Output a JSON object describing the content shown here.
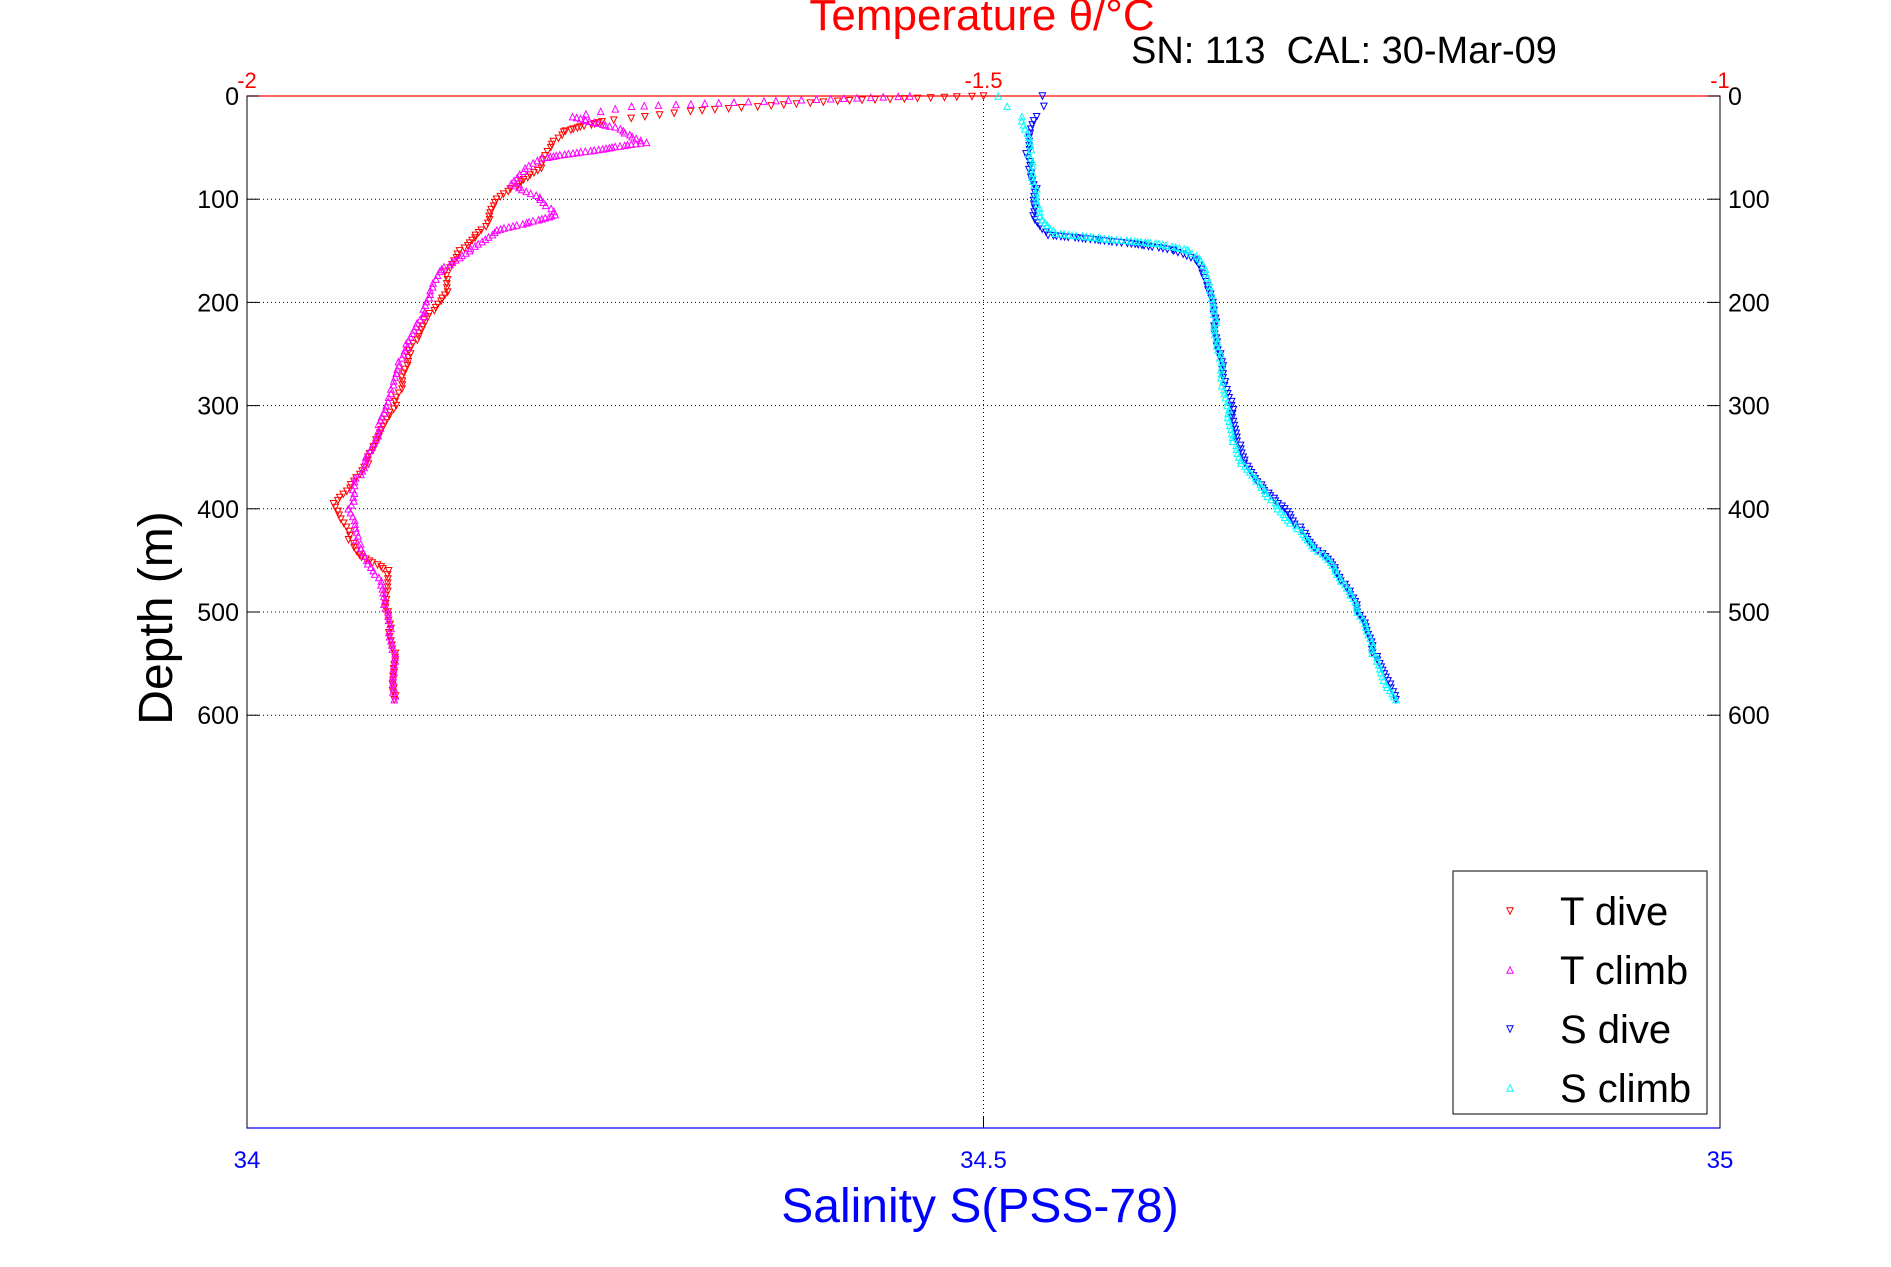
{
  "chart_data": {
    "type": "scatter",
    "title": "Temperature θ/°C",
    "subtitle": "SN: 113  CAL: 30-Mar-09",
    "xlabel": "Salinity S(PSS-78)",
    "ylabel": "Depth (m)",
    "ylim": [
      0,
      1000
    ],
    "yticks": [
      "0",
      "100",
      "200",
      "300",
      "400",
      "500",
      "600"
    ],
    "ytick_values": [
      0,
      100,
      200,
      300,
      400,
      500,
      600
    ],
    "salinity_axis": {
      "lim": [
        34,
        35
      ],
      "ticks": [
        "34",
        "34.5",
        "35"
      ],
      "tick_values": [
        34,
        34.5,
        35
      ],
      "color": "#0000ff"
    },
    "temperature_axis": {
      "lim": [
        -2,
        -1
      ],
      "ticks": [
        "-2",
        "-1.5",
        "-1"
      ],
      "tick_values": [
        -2,
        -1.5,
        -1
      ],
      "color": "#ff0000"
    },
    "grid": true,
    "legend_position": "bottom-right",
    "series": [
      {
        "name": "T dive",
        "axis": "temperature",
        "color": "#ff0000",
        "marker": "triangle-down",
        "depth": [
          0,
          5,
          15,
          25,
          35,
          50,
          70,
          90,
          100,
          130,
          150,
          170,
          190,
          220,
          250,
          280,
          300,
          330,
          360,
          380,
          395,
          410,
          430,
          445,
          460,
          500,
          540,
          585
        ],
        "values": [
          -1.5,
          -1.6,
          -1.7,
          -1.76,
          -1.785,
          -1.795,
          -1.8,
          -1.82,
          -1.83,
          -1.84,
          -1.855,
          -1.865,
          -1.865,
          -1.88,
          -1.89,
          -1.895,
          -1.9,
          -1.91,
          -1.92,
          -1.93,
          -1.94,
          -1.935,
          -1.93,
          -1.925,
          -1.905,
          -1.905,
          -1.9,
          -1.9
        ]
      },
      {
        "name": "T climb",
        "axis": "temperature",
        "color": "#ff00ff",
        "marker": "triangle-up",
        "depth": [
          0,
          5,
          10,
          20,
          30,
          45,
          60,
          70,
          85,
          100,
          115,
          130,
          150,
          170,
          185,
          210,
          250,
          280,
          300,
          340,
          370,
          400,
          430,
          450,
          470,
          500,
          540,
          585
        ],
        "values": [
          -1.55,
          -1.65,
          -1.74,
          -1.78,
          -1.75,
          -1.73,
          -1.8,
          -1.81,
          -1.82,
          -1.8,
          -1.79,
          -1.83,
          -1.85,
          -1.87,
          -1.875,
          -1.88,
          -1.895,
          -1.9,
          -1.905,
          -1.915,
          -1.925,
          -1.93,
          -1.925,
          -1.92,
          -1.91,
          -1.905,
          -1.9,
          -1.9
        ]
      },
      {
        "name": "S dive",
        "axis": "salinity",
        "color": "#0000ff",
        "marker": "triangle-down",
        "depth": [
          0,
          10,
          20,
          40,
          60,
          90,
          120,
          135,
          140,
          145,
          150,
          160,
          180,
          200,
          250,
          300,
          350,
          380,
          400,
          430,
          460,
          500,
          540,
          570,
          585
        ],
        "values": [
          34.54,
          34.54,
          34.535,
          34.53,
          34.53,
          34.535,
          34.535,
          34.545,
          34.58,
          34.61,
          34.63,
          34.645,
          34.65,
          34.655,
          34.66,
          34.668,
          34.675,
          34.69,
          34.705,
          34.72,
          34.74,
          34.755,
          34.765,
          34.775,
          34.78
        ]
      },
      {
        "name": "S climb",
        "axis": "salinity",
        "color": "#00ffff",
        "marker": "triangle-up",
        "depth": [
          0,
          10,
          20,
          40,
          60,
          90,
          120,
          133,
          138,
          143,
          150,
          160,
          180,
          200,
          250,
          300,
          350,
          370,
          400,
          430,
          460,
          500,
          540,
          570,
          585
        ],
        "values": [
          34.51,
          34.515,
          34.525,
          34.53,
          34.532,
          34.535,
          34.54,
          34.55,
          34.58,
          34.62,
          34.64,
          34.648,
          34.652,
          34.655,
          34.66,
          34.665,
          34.672,
          34.685,
          34.7,
          34.72,
          34.74,
          34.755,
          34.765,
          34.772,
          34.78
        ]
      }
    ]
  }
}
